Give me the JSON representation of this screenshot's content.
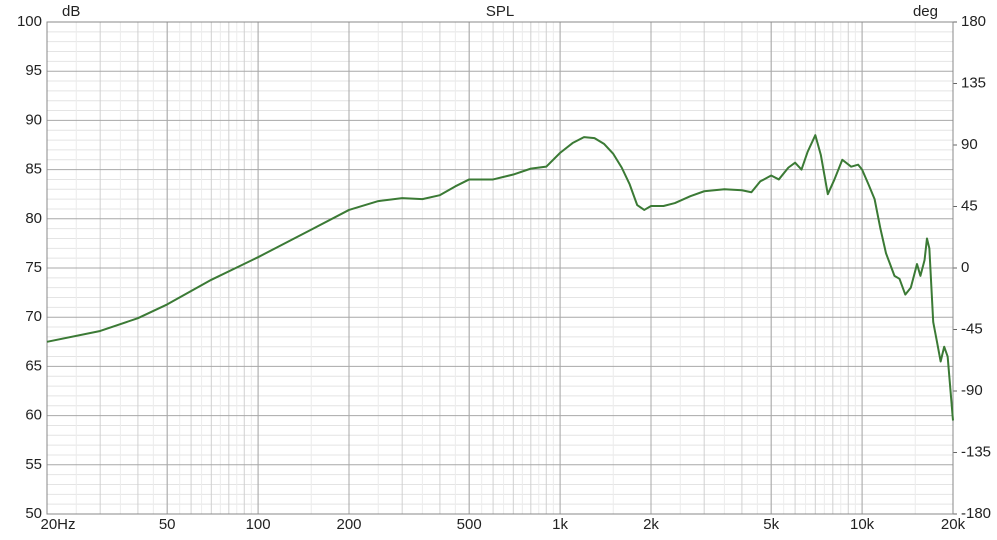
{
  "chart_data": {
    "type": "line",
    "title": "SPL",
    "y_label": "dB",
    "y2_label": "deg",
    "xscale": "log",
    "grid": true,
    "xlim": [
      20,
      20000
    ],
    "xticks": [
      {
        "value": 20,
        "label": "20Hz"
      },
      50,
      100,
      200,
      500,
      {
        "value": 1000,
        "label": "1k"
      },
      {
        "value": 2000,
        "label": "2k"
      },
      {
        "value": 5000,
        "label": "5k"
      },
      {
        "value": 10000,
        "label": "10k"
      },
      {
        "value": 20000,
        "label": "20k"
      }
    ],
    "ylim": [
      50,
      100
    ],
    "yticks": [
      50,
      55,
      60,
      65,
      70,
      75,
      80,
      85,
      90,
      95,
      100
    ],
    "y2lim": [
      -180,
      180
    ],
    "y2ticks": [
      -180,
      -135,
      -90,
      -45,
      0,
      45,
      90,
      135,
      180
    ],
    "x": [
      20,
      30,
      40,
      50,
      70,
      100,
      150,
      200,
      250,
      300,
      350,
      400,
      450,
      500,
      600,
      700,
      800,
      900,
      1000,
      1100,
      1200,
      1300,
      1400,
      1500,
      1600,
      1700,
      1800,
      1900,
      2000,
      2200,
      2400,
      2700,
      3000,
      3500,
      4000,
      4300,
      4600,
      5000,
      5300,
      5700,
      6000,
      6300,
      6600,
      7000,
      7300,
      7700,
      8100,
      8600,
      9200,
      9700,
      10000,
      10500,
      11000,
      11500,
      12000,
      12800,
      13300,
      13900,
      14500,
      15200,
      15600,
      16100,
      16400,
      16700,
      17200,
      17700,
      18200,
      18700,
      19200,
      20000
    ],
    "series": [
      {
        "name": "SPL",
        "color": "#3b7a35",
        "values": [
          67.5,
          68.6,
          69.9,
          71.3,
          73.8,
          76.1,
          78.9,
          80.9,
          81.8,
          82.1,
          82.0,
          82.4,
          83.3,
          84.0,
          84.0,
          84.5,
          85.1,
          85.3,
          86.7,
          87.7,
          88.3,
          88.2,
          87.6,
          86.6,
          85.2,
          83.5,
          81.4,
          80.9,
          81.3,
          81.3,
          81.6,
          82.3,
          82.8,
          83.0,
          82.9,
          82.7,
          83.8,
          84.4,
          84.0,
          85.2,
          85.7,
          85.0,
          86.8,
          88.5,
          86.5,
          82.5,
          84.0,
          86.0,
          85.3,
          85.5,
          85.0,
          83.5,
          82.0,
          79.0,
          76.5,
          74.2,
          73.9,
          72.3,
          73.0,
          75.4,
          74.2,
          75.8,
          78.0,
          77.0,
          69.5,
          67.5,
          65.5,
          67.0,
          66.0,
          59.5
        ]
      }
    ]
  }
}
